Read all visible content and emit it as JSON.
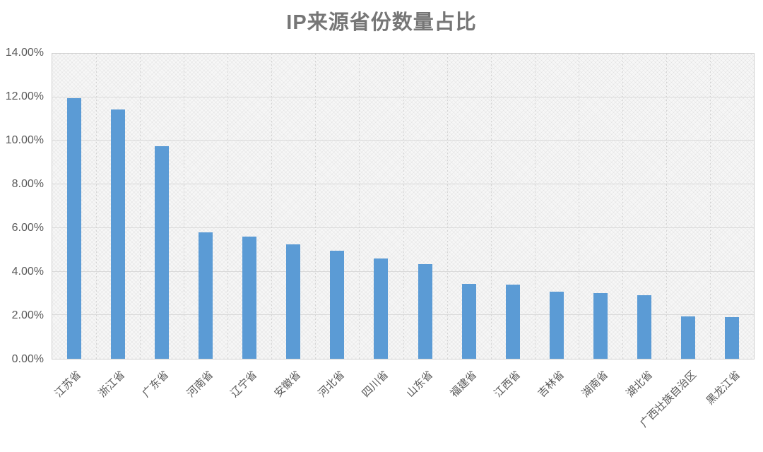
{
  "chart_data": {
    "type": "bar",
    "title": "IP来源省份数量占比",
    "categories": [
      "江苏省",
      "浙江省",
      "广东省",
      "河南省",
      "辽宁省",
      "安徽省",
      "河北省",
      "四川省",
      "山东省",
      "福建省",
      "江西省",
      "吉林省",
      "湖南省",
      "湖北省",
      "广西壮族自治区",
      "黑龙江省"
    ],
    "values": [
      11.95,
      11.45,
      9.75,
      5.8,
      5.62,
      5.24,
      4.96,
      4.6,
      4.33,
      3.44,
      3.41,
      3.08,
      3.0,
      2.93,
      1.93,
      1.9
    ],
    "xlabel": "",
    "ylabel": "",
    "ylim": [
      0,
      14
    ],
    "y_ticks": [
      {
        "value": 0,
        "label": "0.00%"
      },
      {
        "value": 2,
        "label": "2.00%"
      },
      {
        "value": 4,
        "label": "4.00%"
      },
      {
        "value": 6,
        "label": "6.00%"
      },
      {
        "value": 8,
        "label": "8.00%"
      },
      {
        "value": 10,
        "label": "10.00%"
      },
      {
        "value": 12,
        "label": "12.00%"
      },
      {
        "value": 14,
        "label": "14.00%"
      }
    ],
    "grid": "horizontal-solid and vertical-dotted gridlines on",
    "legend": "none",
    "colors": {
      "bar_fill": "#5b9bd5",
      "gridline": "#d9d9d9",
      "axis_text": "#595959",
      "title_text": "#767676",
      "plot_background": "#f7f7f7"
    }
  }
}
